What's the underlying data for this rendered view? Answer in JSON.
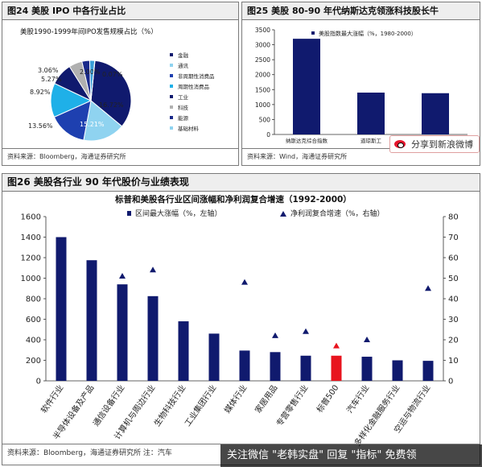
{
  "panel1": {
    "title": "图24 美股 IPO 中各行业占比",
    "source": "资料来源：Bloomberg，海通证券研究所"
  },
  "panel2": {
    "title": "图25 美股 80-90 年代纳斯达克领涨科技股长牛",
    "source": "资料来源：Wind，海通证券研究所"
  },
  "panel3": {
    "title": "图26 美股各行业 90 年代股价与业绩表现",
    "source": "资料来源：Bloomberg，海通证券研究所 注：汽车"
  },
  "watermark": "关注微信 \"老韩实盘\" 回复 \"指标\" 免费领",
  "weibo": {
    "label": "分享到新浪微博",
    "icon": "weibo-icon"
  },
  "colors": {
    "navy": "#101a6e",
    "red": "#e8141e",
    "light_blue": "#8fd3f0",
    "cyan": "#1fb0e8",
    "gray": "#b0b0b0",
    "blue_mid": "#3a7fd0"
  },
  "chart_data": [
    {
      "type": "pie",
      "title": "美股1990-1999年间IPO发售规模占比（%）",
      "slices": [
        {
          "name": "金融",
          "value": 34.0,
          "label": "",
          "color": "#101a6e"
        },
        {
          "name": "通讯",
          "value": 16.72,
          "label": "16.72%",
          "color": "#8fd3f0"
        },
        {
          "name": "非周期性消费品",
          "value": 15.21,
          "label": "15.21%",
          "color": "#1e40b0"
        },
        {
          "name": "周期性消费品",
          "value": 13.56,
          "label": "13.56%",
          "color": "#1fb0e8"
        },
        {
          "name": "工业",
          "value": 8.92,
          "label": "8.92%",
          "color": "#101a6e"
        },
        {
          "name": "科技",
          "value": 5.27,
          "label": "5.27%",
          "color": "#b0b0b0"
        },
        {
          "name": "能源",
          "value": 3.06,
          "label": "3.06%",
          "color": "#1a2a8a"
        },
        {
          "name": "基础材料",
          "value": 2.0,
          "label": "2.00%",
          "color": "#3a9fd8"
        },
        {
          "name": "",
          "value": 0.07,
          "label": "0.07%",
          "color": "#3a7fd0"
        }
      ],
      "legend": [
        "金融",
        "通讯",
        "非周期性消费品",
        "周期性消费品",
        "工业",
        "科技",
        "能源",
        "基础材料"
      ],
      "legend_colors": [
        "#101a6e",
        "#8fd3f0",
        "#1e40b0",
        "#1fb0e8",
        "#101a6e",
        "#b0b0b0",
        "#1a2a8a",
        "#8fd3f0"
      ]
    },
    {
      "type": "bar",
      "legend": "美股指数最大涨幅（%，1980-2000）",
      "categories": [
        "纳斯达克综合指数",
        "道琼斯工",
        ""
      ],
      "values": [
        3200,
        1400,
        1380
      ],
      "ylim": [
        0,
        3500
      ],
      "yticks": [
        "0",
        "500",
        "1000",
        "1500",
        "2000",
        "2500",
        "3000",
        "3500"
      ],
      "color": "#101a6e"
    },
    {
      "type": "bar",
      "title": "标普和美股各行业区间涨幅和净利润复合增速（1992-2000）",
      "categories": [
        "软件行业",
        "半导体设备及产品",
        "通信设备行业",
        "计算机与周边行业",
        "生物科技行业",
        "工业集团行业",
        "媒体行业",
        "家居用品",
        "专营零售行业",
        "标普500",
        "汽车行业",
        "多样化金融服务行业",
        "空运与物流行业"
      ],
      "series": [
        {
          "name": "区间最大涨幅（%，左轴）",
          "axis": "left",
          "values": [
            1400,
            1175,
            940,
            825,
            580,
            460,
            295,
            280,
            245,
            245,
            235,
            200,
            195
          ]
        },
        {
          "name": "净利润复合增速（%，右轴）",
          "axis": "right",
          "values": [
            41,
            32,
            51,
            54,
            8,
            15,
            48,
            22,
            24,
            17,
            20,
            0,
            45
          ]
        }
      ],
      "highlight_index": 9,
      "ylim_left": [
        0,
        1600
      ],
      "ylim_right": [
        0,
        80
      ],
      "yticks_left": [
        "0",
        "200",
        "400",
        "600",
        "800",
        "1000",
        "1200",
        "1400",
        "1600"
      ],
      "yticks_right": [
        "0",
        "10",
        "20",
        "30",
        "40",
        "50",
        "60",
        "70",
        "80"
      ]
    }
  ]
}
